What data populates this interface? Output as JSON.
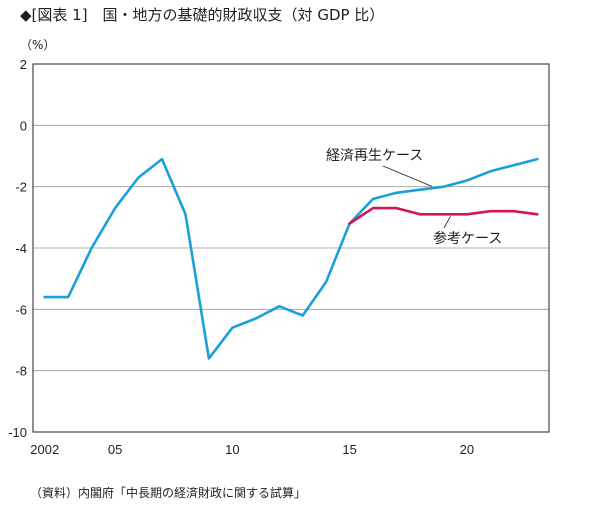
{
  "title": "◆[図表 1]　国・地方の基礎的財政収支（対 GDP 比）",
  "unit_label": "（%）",
  "source": "（資料）内閣府「中長期の経済財政に関する試算」",
  "colors": {
    "baseline": "#1aa0d8",
    "reference": "#d4145a",
    "grid": "#9a9a9a",
    "frame": "#231f20"
  },
  "chart_data": {
    "type": "line",
    "xlabel": "",
    "ylabel": "",
    "xlim": [
      2001.5,
      2023.5
    ],
    "ylim": [
      -10,
      2
    ],
    "y_ticks": [
      2,
      0,
      -2,
      -4,
      -6,
      -8,
      -10
    ],
    "x_ticks": [
      {
        "value": 2002,
        "label": "2002"
      },
      {
        "value": 2005,
        "label": "05"
      },
      {
        "value": 2010,
        "label": "10"
      },
      {
        "value": 2015,
        "label": "15"
      },
      {
        "value": 2020,
        "label": "20"
      }
    ],
    "grid": true,
    "series": [
      {
        "name": "経済再生ケース",
        "color": "#1aa0d8",
        "x": [
          2002,
          2003,
          2004,
          2005,
          2006,
          2007,
          2008,
          2009,
          2010,
          2011,
          2012,
          2013,
          2014,
          2015,
          2016,
          2017,
          2018,
          2019,
          2020,
          2021,
          2022,
          2023
        ],
        "y": [
          -5.6,
          -5.6,
          -4.0,
          -2.7,
          -1.7,
          -1.1,
          -2.9,
          -7.6,
          -6.6,
          -6.3,
          -5.9,
          -6.2,
          -5.1,
          -3.2,
          -2.4,
          -2.2,
          -2.1,
          -2.0,
          -1.8,
          -1.5,
          -1.3,
          -1.1
        ]
      },
      {
        "name": "参考ケース",
        "color": "#d4145a",
        "x": [
          2015,
          2016,
          2017,
          2018,
          2019,
          2020,
          2021,
          2022,
          2023
        ],
        "y": [
          -3.2,
          -2.7,
          -2.7,
          -2.9,
          -2.9,
          -2.9,
          -2.8,
          -2.8,
          -2.9
        ]
      }
    ],
    "annotations": [
      {
        "text": "経済再生ケース",
        "series": "経済再生ケース"
      },
      {
        "text": "参考ケース",
        "series": "参考ケース"
      }
    ]
  }
}
